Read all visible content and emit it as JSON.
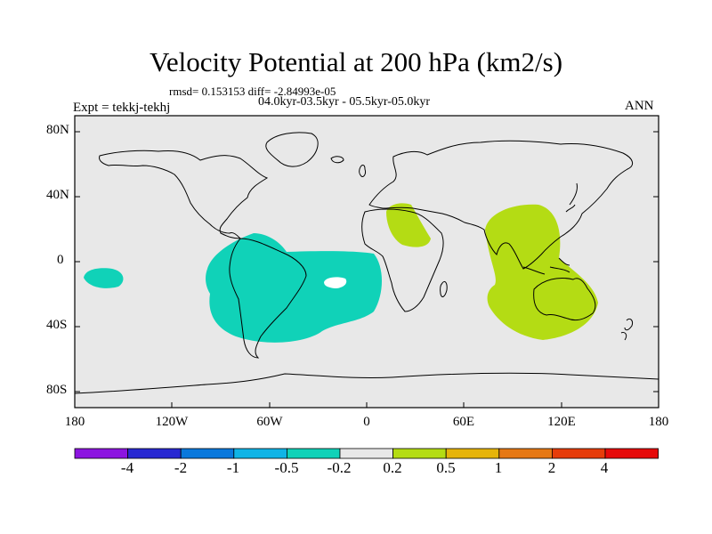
{
  "title": "Velocity Potential at 200 hPa (km2/s)",
  "stats_line": "rmsd= 0.153153 diff= -2.84993e-05",
  "period_line": "04.0kyr-03.5kyr - 05.5kyr-05.0kyr",
  "experiment_label": "Expt = tekkj-tekhj",
  "season_label": "ANN",
  "map": {
    "projection": "cylindrical-equidistant",
    "lon_range": [
      -180,
      180
    ],
    "lat_range": [
      -90,
      90
    ],
    "background_color": "#e8e8e8",
    "coastline_color": "#000000",
    "y_ticks": [
      "80N",
      "40N",
      "0",
      "40S",
      "80S"
    ],
    "x_ticks": [
      "180",
      "120W",
      "60W",
      "0",
      "60E",
      "120E",
      "180"
    ],
    "shaded_regions": [
      {
        "name": "south-america-atlantic-negative-anomaly",
        "level": "-0.5 to -0.2",
        "color": "#10d2b8"
      },
      {
        "name": "central-pacific-negative-anomaly",
        "level": "-0.5 to -0.2",
        "color": "#10d2b8"
      },
      {
        "name": "north-africa-positive-anomaly",
        "level": "0.2 to 0.5",
        "color": "#b4dc14"
      },
      {
        "name": "indian-ocean-australia-positive-anomaly",
        "level": "0.2 to 0.5",
        "color": "#b4dc14"
      }
    ]
  },
  "colorbar": {
    "colors": [
      "#8c14e0",
      "#2828d2",
      "#0a78dc",
      "#10b4e6",
      "#10d2b8",
      "#e8e8e8",
      "#b4dc14",
      "#e6b40a",
      "#e67814",
      "#e63c0a",
      "#e60a0a"
    ],
    "labels": [
      "-4",
      "-2",
      "-1",
      "-0.5",
      "-0.2",
      "0.2",
      "0.5",
      "1",
      "2",
      "4"
    ]
  }
}
